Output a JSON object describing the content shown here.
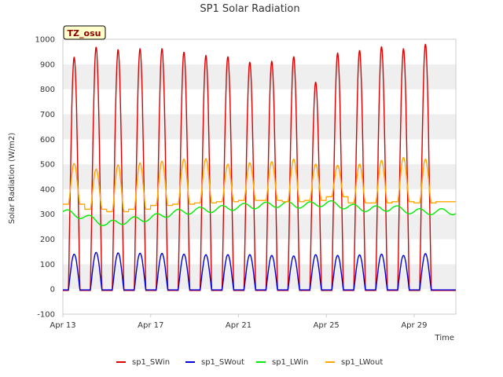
{
  "chart_data": {
    "type": "line",
    "title": "SP1 Solar Radiation",
    "xlabel": "Time",
    "ylabel": "Solar Radiation (W/m2)",
    "badge": "TZ_osu",
    "ylim": [
      -100,
      1000
    ],
    "yticks": [
      -100,
      0,
      100,
      200,
      300,
      400,
      500,
      600,
      700,
      800,
      900,
      1000
    ],
    "xlim": [
      0,
      17.9
    ],
    "xticks": [
      {
        "day": 0,
        "label": "Apr 13"
      },
      {
        "day": 4,
        "label": "Apr 17"
      },
      {
        "day": 8,
        "label": "Apr 21"
      },
      {
        "day": 12,
        "label": "Apr 25"
      },
      {
        "day": 16,
        "label": "Apr 29"
      }
    ],
    "grid": "horizontal bands",
    "legend_position": "bottom",
    "days": [
      "Apr 13",
      "Apr 14",
      "Apr 15",
      "Apr 16",
      "Apr 17",
      "Apr 18",
      "Apr 19",
      "Apr 20",
      "Apr 21",
      "Apr 22",
      "Apr 23",
      "Apr 24",
      "Apr 25",
      "Apr 26",
      "Apr 27",
      "Apr 28",
      "Apr 29",
      "Apr 30"
    ],
    "series": [
      {
        "name": "sp1_SWin",
        "color": "#dd0000",
        "kind": "day_peak",
        "night": -5,
        "peaks": [
          928,
          968,
          958,
          962,
          962,
          948,
          935,
          930,
          908,
          912,
          930,
          828,
          945,
          955,
          970,
          962,
          980
        ]
      },
      {
        "name": "sp1_SWout",
        "color": "#0000dd",
        "kind": "day_peak",
        "night": -3,
        "peaks": [
          140,
          147,
          145,
          144,
          143,
          140,
          138,
          138,
          138,
          135,
          133,
          138,
          135,
          137,
          140,
          135,
          142
        ]
      },
      {
        "name": "sp1_LWin",
        "color": "#00ee00",
        "kind": "level",
        "levels": [
          310,
          290,
          260,
          275,
          285,
          305,
          315,
          320,
          330,
          335,
          340,
          335,
          345,
          330,
          320,
          325,
          310,
          310
        ]
      },
      {
        "name": "sp1_LWout",
        "color": "#ffa500",
        "kind": "day_peak",
        "night_levels": [
          340,
          320,
          310,
          320,
          335,
          340,
          345,
          350,
          355,
          355,
          350,
          355,
          370,
          345,
          345,
          350,
          345,
          350
        ],
        "peaks": [
          503,
          480,
          497,
          505,
          512,
          520,
          522,
          500,
          505,
          510,
          520,
          500,
          495,
          500,
          515,
          527,
          520
        ]
      }
    ]
  }
}
